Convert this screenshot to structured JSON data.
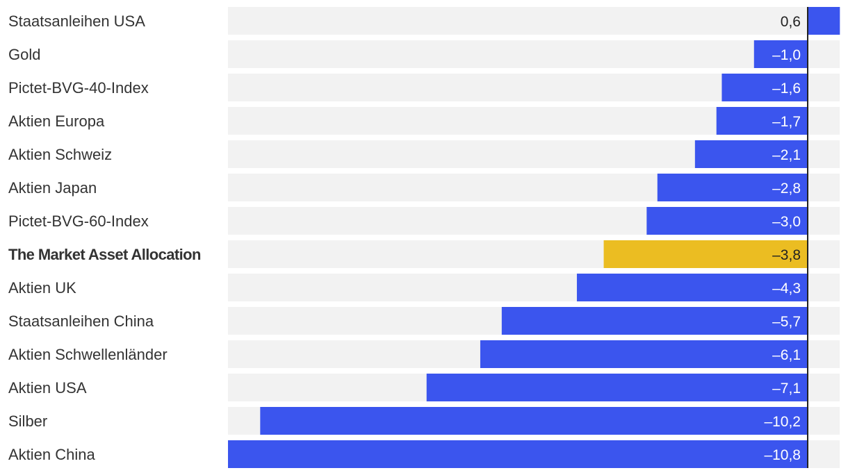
{
  "chart_data": {
    "type": "bar",
    "orientation": "horizontal",
    "title": "",
    "xlabel": "",
    "ylabel": "",
    "xlim": [
      -10.8,
      0.6
    ],
    "grid": false,
    "legend": "none",
    "categories": [
      "Staatsanleihen USA",
      "Gold",
      "Pictet-BVG-40-Index",
      "Aktien Europa",
      "Aktien Schweiz",
      "Aktien Japan",
      "Pictet-BVG-60-Index",
      "The Market Asset Allocation",
      "Aktien UK",
      "Staatsanleihen China",
      "Aktien Schwellenländer",
      "Aktien USA",
      "Silber",
      "Aktien China"
    ],
    "values": [
      0.6,
      -1.0,
      -1.6,
      -1.7,
      -2.1,
      -2.8,
      -3.0,
      -3.8,
      -4.3,
      -5.7,
      -6.1,
      -7.1,
      -10.2,
      -10.8
    ],
    "value_labels": [
      "0,6",
      "–1,0",
      "–1,6",
      "–1,7",
      "–2,1",
      "–2,8",
      "–3,0",
      "–3,8",
      "–4,3",
      "–5,7",
      "–6,1",
      "–7,1",
      "–10,2",
      "–10,8"
    ],
    "highlight_index": 7,
    "colors": {
      "bar": "#3b55ee",
      "highlight": "#ebbd22",
      "track": "#f2f2f2",
      "zero_line": "#222222",
      "label": "#333333"
    }
  }
}
